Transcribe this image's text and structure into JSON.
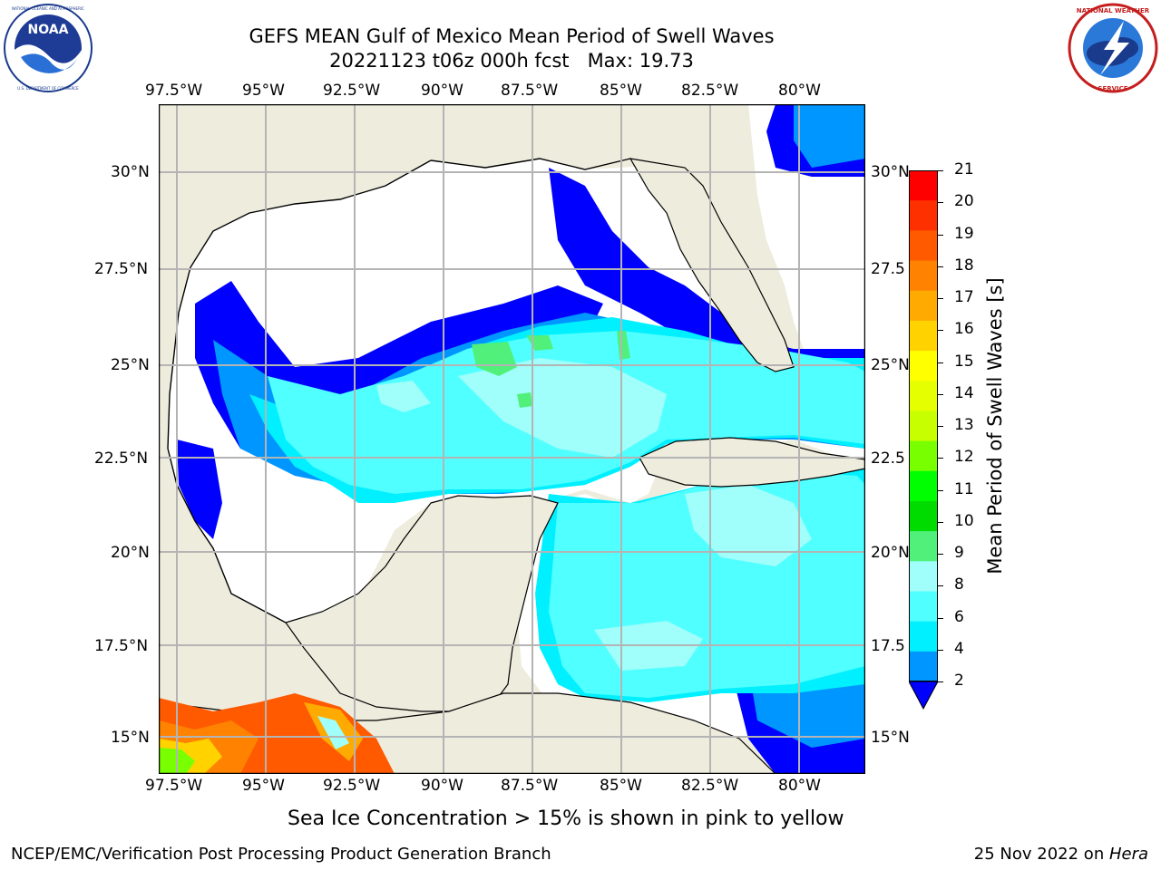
{
  "header": {
    "title_line1": "GEFS MEAN Gulf of Mexico Mean Period of Swell Waves",
    "title_line2": "20221123 t06z 000h fcst   Max: 19.73"
  },
  "logos": {
    "left": {
      "text": "NOAA",
      "ring_text": "NATIONAL OCEANIC AND ATMOSPHERIC ADMINISTRATION · U.S. DEPARTMENT OF COMMERCE"
    },
    "right": {
      "ring_text": "NATIONAL WEATHER SERVICE"
    }
  },
  "map": {
    "lon_labels": [
      "97.5°W",
      "95°W",
      "92.5°W",
      "90°W",
      "87.5°W",
      "85°W",
      "82.5°W",
      "80°W"
    ],
    "lat_labels_left": [
      "30°N",
      "27.5°N",
      "25°N",
      "22.5°N",
      "20°N",
      "17.5°N",
      "15°N"
    ],
    "lat_labels_right": [
      "30°N",
      "27.5",
      "25°N",
      "22.5",
      "20°N",
      "17.5",
      "15°N"
    ],
    "colors": {
      "land": "#eeecdd",
      "ocean_low": "#ffffff",
      "grid": "#b4b4b4"
    }
  },
  "colorbar": {
    "label": "Mean Period of Swell Waves [s]",
    "ticks": [
      "21",
      "20",
      "19",
      "18",
      "17",
      "16",
      "15",
      "14",
      "13",
      "12",
      "11",
      "10",
      "9",
      "8",
      "6",
      "4",
      "2"
    ],
    "colors": [
      "#ff0000",
      "#ff3000",
      "#ff5a00",
      "#ff8200",
      "#ffaa00",
      "#ffd200",
      "#ffff00",
      "#e6ff00",
      "#c8ff00",
      "#78ff00",
      "#00ff00",
      "#00dc00",
      "#50f07a",
      "#a0fffa",
      "#50ffff",
      "#00f0ff",
      "#0096ff",
      "#0000ff"
    ]
  },
  "notes": {
    "ice": "Sea Ice Concentration > 15% is shown in pink to yellow"
  },
  "footer": {
    "left": "NCEP/EMC/Verification Post Processing Product Generation Branch",
    "right_date": "25 Nov 2022 on ",
    "right_host": "Hera"
  }
}
